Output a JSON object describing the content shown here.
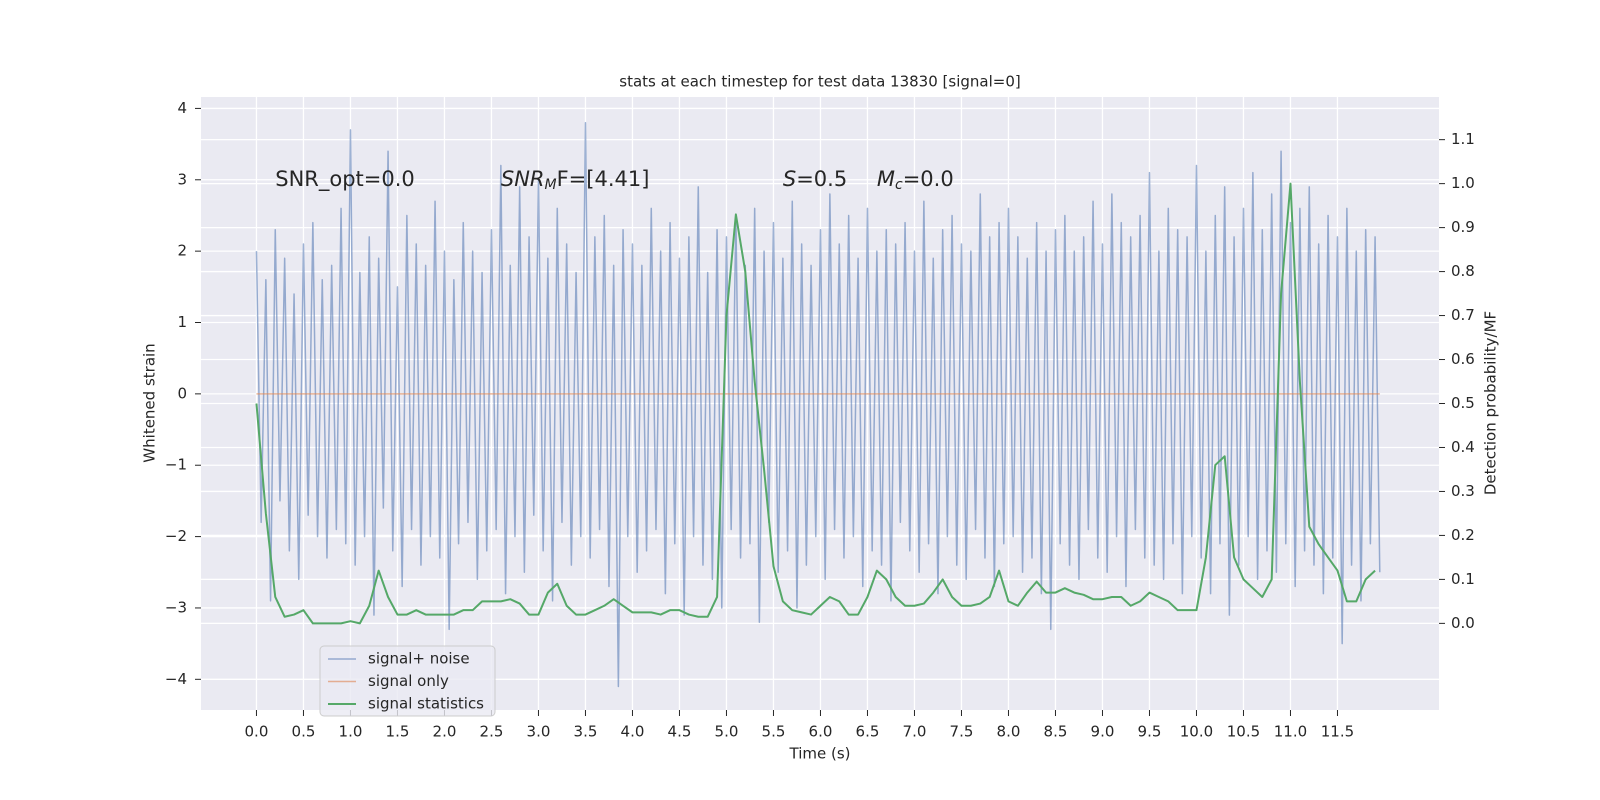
{
  "chart_data": {
    "type": "line",
    "title": "stats at each timestep for test data 13830 [signal=0]",
    "xlabel": "Time (s)",
    "ylabel": "Whitened strain",
    "y2label": "Detection probability/MF",
    "grid": true,
    "legend": "lower left",
    "xlim": [
      -0.59,
      12.58
    ],
    "xticks": [
      {
        "value": 0,
        "label": "0.0"
      },
      0.5,
      {
        "value": 1,
        "label": "1.0"
      },
      1.5,
      {
        "value": 2,
        "label": "2.0"
      },
      2.5,
      {
        "value": 3,
        "label": "3.0"
      },
      3.5,
      {
        "value": 4,
        "label": "4.0"
      },
      4.5,
      {
        "value": 5,
        "label": "5.0"
      },
      5.5,
      {
        "value": 6,
        "label": "6.0"
      },
      6.5,
      {
        "value": 7,
        "label": "7.0"
      },
      7.5,
      {
        "value": 8,
        "label": "8.0"
      },
      8.5,
      {
        "value": 9,
        "label": "9.0"
      },
      9.5,
      {
        "value": 10,
        "label": "10.0"
      },
      10.5,
      {
        "value": 11,
        "label": "11.0"
      },
      11.5
    ],
    "ylim": [
      -4.43,
      4.16
    ],
    "yticks": [
      {
        "value": -4,
        "label": "−4"
      },
      {
        "value": -3,
        "label": "−3"
      },
      {
        "value": -2,
        "label": "−2"
      },
      {
        "value": -1,
        "label": "−1"
      },
      0,
      1,
      2,
      3,
      4
    ],
    "y2lim": [
      -0.197,
      1.197
    ],
    "y2ticks": [
      {
        "value": 0,
        "label": "0.0"
      },
      0.1,
      0.2,
      0.3,
      0.4,
      0.5,
      0.6,
      0.7,
      0.8,
      0.9,
      {
        "value": 1,
        "label": "1.0"
      },
      1.1
    ],
    "annotations": [
      {
        "text": "SNR_opt=0.0"
      },
      {
        "main": "SNR",
        "sub": "M",
        "rest": "F=[4.41]"
      },
      {
        "main": "S",
        "rest": "=0.5"
      },
      {
        "main": "M",
        "sub": "c",
        "rest": "=0.0"
      }
    ],
    "series": [
      {
        "name": "signal+ noise",
        "color": "#4c72b0",
        "x": [
          0,
          0.05,
          0.1,
          0.15,
          0.2,
          0.25,
          0.3,
          0.35,
          0.4,
          0.45,
          0.5,
          0.55,
          0.6,
          0.65,
          0.7,
          0.75,
          0.8,
          0.85,
          0.9,
          0.95,
          1,
          1.05,
          1.1,
          1.15,
          1.2,
          1.25,
          1.3,
          1.35,
          1.4,
          1.45,
          1.5,
          1.55,
          1.6,
          1.65,
          1.7,
          1.75,
          1.8,
          1.85,
          1.9,
          1.95,
          2,
          2.05,
          2.1,
          2.15,
          2.2,
          2.25,
          2.3,
          2.35,
          2.4,
          2.45,
          2.5,
          2.55,
          2.6,
          2.65,
          2.7,
          2.75,
          2.8,
          2.85,
          2.9,
          2.95,
          3,
          3.05,
          3.1,
          3.15,
          3.2,
          3.25,
          3.3,
          3.35,
          3.4,
          3.45,
          3.5,
          3.55,
          3.6,
          3.65,
          3.7,
          3.75,
          3.8,
          3.85,
          3.9,
          3.95,
          4,
          4.05,
          4.1,
          4.15,
          4.2,
          4.25,
          4.3,
          4.35,
          4.4,
          4.45,
          4.5,
          4.55,
          4.6,
          4.65,
          4.7,
          4.75,
          4.8,
          4.85,
          4.9,
          4.95,
          5,
          5.05,
          5.1,
          5.15,
          5.2,
          5.25,
          5.3,
          5.35,
          5.4,
          5.45,
          5.5,
          5.55,
          5.6,
          5.65,
          5.7,
          5.75,
          5.8,
          5.85,
          5.9,
          5.95,
          6,
          6.05,
          6.1,
          6.15,
          6.2,
          6.25,
          6.3,
          6.35,
          6.4,
          6.45,
          6.5,
          6.55,
          6.6,
          6.65,
          6.7,
          6.75,
          6.8,
          6.85,
          6.9,
          6.95,
          7,
          7.05,
          7.1,
          7.15,
          7.2,
          7.25,
          7.3,
          7.35,
          7.4,
          7.45,
          7.5,
          7.55,
          7.6,
          7.65,
          7.7,
          7.75,
          7.8,
          7.85,
          7.9,
          7.95,
          8,
          8.05,
          8.1,
          8.15,
          8.2,
          8.25,
          8.3,
          8.35,
          8.4,
          8.45,
          8.5,
          8.55,
          8.6,
          8.65,
          8.7,
          8.75,
          8.8,
          8.85,
          8.9,
          8.95,
          9,
          9.05,
          9.1,
          9.15,
          9.2,
          9.25,
          9.3,
          9.35,
          9.4,
          9.45,
          9.5,
          9.55,
          9.6,
          9.65,
          9.7,
          9.75,
          9.8,
          9.85,
          9.9,
          9.95,
          10,
          10.05,
          10.1,
          10.15,
          10.2,
          10.25,
          10.3,
          10.35,
          10.4,
          10.45,
          10.5,
          10.55,
          10.6,
          10.65,
          10.7,
          10.75,
          10.8,
          10.85,
          10.9,
          10.95,
          11,
          11.05,
          11.1,
          11.15,
          11.2,
          11.25,
          11.3,
          11.35,
          11.4,
          11.45,
          11.5,
          11.55,
          11.6,
          11.65,
          11.7,
          11.75,
          11.8,
          11.85,
          11.9,
          11.95
        ],
        "values": [
          2.0,
          -1.8,
          1.6,
          -2.9,
          2.3,
          -1.5,
          1.9,
          -2.2,
          1.4,
          -2.6,
          2.1,
          -1.7,
          2.4,
          -2.0,
          1.6,
          -2.3,
          1.8,
          -1.9,
          2.6,
          -2.1,
          3.7,
          -2.4,
          1.7,
          -2.0,
          2.2,
          -3.1,
          1.9,
          -1.6,
          3.4,
          -2.2,
          1.5,
          -2.7,
          2.5,
          -1.9,
          2.1,
          -2.4,
          1.8,
          -2.0,
          2.7,
          -2.3,
          2.0,
          -3.3,
          1.6,
          -2.1,
          2.4,
          -1.8,
          2.0,
          -2.6,
          1.7,
          -2.2,
          2.3,
          -1.9,
          3.2,
          -2.8,
          1.8,
          -2.0,
          2.9,
          -2.5,
          2.2,
          -1.7,
          3.0,
          -2.2,
          1.9,
          -2.9,
          2.6,
          -1.8,
          2.1,
          -2.4,
          1.7,
          -2.0,
          3.8,
          -2.3,
          2.2,
          -1.9,
          2.5,
          -2.7,
          1.8,
          -4.1,
          2.3,
          -2.0,
          2.1,
          -2.5,
          1.8,
          -2.2,
          2.6,
          -1.9,
          2.0,
          -2.8,
          2.4,
          -2.1,
          1.9,
          -3.1,
          2.2,
          -2.0,
          2.9,
          -2.4,
          1.7,
          -2.6,
          2.3,
          -3.0,
          2.2,
          -1.9,
          2.5,
          -2.3,
          1.8,
          -2.1,
          2.6,
          -3.2,
          2.0,
          -1.8,
          2.4,
          -2.5,
          1.9,
          -2.2,
          2.7,
          -3.0,
          2.1,
          -2.4,
          1.8,
          -2.0,
          2.3,
          -2.6,
          2.8,
          -1.9,
          2.1,
          -2.3,
          2.5,
          -2.0,
          1.9,
          -2.7,
          2.6,
          -2.2,
          2.0,
          -2.4,
          2.3,
          -2.9,
          2.1,
          -1.8,
          2.4,
          -2.2,
          2.0,
          -2.5,
          2.7,
          -2.1,
          1.9,
          -2.8,
          2.3,
          -2.0,
          2.5,
          -2.4,
          2.1,
          -2.6,
          2.0,
          -1.9,
          2.8,
          -2.3,
          2.2,
          -2.7,
          2.4,
          -2.1,
          2.6,
          -2.0,
          2.2,
          -2.5,
          1.9,
          -2.3,
          2.4,
          -2.8,
          2.0,
          -3.3,
          2.3,
          -2.1,
          2.5,
          -2.4,
          2.0,
          -2.6,
          2.2,
          -1.9,
          2.7,
          -2.3,
          2.1,
          -2.5,
          2.8,
          -2.0,
          2.4,
          -2.7,
          2.2,
          -1.9,
          2.5,
          -2.3,
          3.1,
          -2.4,
          2.0,
          -2.6,
          2.6,
          -2.1,
          2.3,
          -2.8,
          2.2,
          -2.0,
          3.2,
          -2.3,
          2.0,
          -2.8,
          2.5,
          -2.1,
          2.9,
          -3.1,
          2.2,
          -2.4,
          2.6,
          -2.0,
          3.1,
          -2.6,
          2.3,
          -2.2,
          2.8,
          -2.5,
          3.4,
          -2.1,
          2.4,
          -2.7,
          2.6,
          -2.2,
          2.9,
          -2.4,
          2.1,
          -2.8,
          2.5,
          -2.3,
          2.2,
          -3.5,
          2.6,
          -2.4,
          2.0,
          -2.9,
          2.3,
          -2.1,
          2.2,
          -2.5
        ]
      },
      {
        "name": "signal only",
        "color": "#dd8452",
        "x": [
          0,
          11.95
        ],
        "values": [
          0,
          0
        ]
      },
      {
        "name": "signal statistics",
        "color": "#55a868",
        "axis": "y2",
        "x": [
          0,
          0.1,
          0.2,
          0.3,
          0.4,
          0.5,
          0.6,
          0.7,
          0.8,
          0.9,
          1,
          1.1,
          1.2,
          1.3,
          1.4,
          1.5,
          1.6,
          1.7,
          1.8,
          1.9,
          2,
          2.1,
          2.2,
          2.3,
          2.4,
          2.5,
          2.6,
          2.7,
          2.8,
          2.9,
          3,
          3.1,
          3.2,
          3.3,
          3.4,
          3.5,
          3.6,
          3.7,
          3.8,
          3.9,
          4,
          4.1,
          4.2,
          4.3,
          4.4,
          4.5,
          4.6,
          4.7,
          4.8,
          4.9,
          5,
          5.1,
          5.2,
          5.3,
          5.4,
          5.5,
          5.6,
          5.7,
          5.8,
          5.9,
          6,
          6.1,
          6.2,
          6.3,
          6.4,
          6.5,
          6.6,
          6.7,
          6.8,
          6.9,
          7,
          7.1,
          7.2,
          7.3,
          7.4,
          7.5,
          7.6,
          7.7,
          7.8,
          7.9,
          8,
          8.1,
          8.2,
          8.3,
          8.4,
          8.5,
          8.6,
          8.7,
          8.8,
          8.9,
          9,
          9.1,
          9.2,
          9.3,
          9.4,
          9.5,
          9.6,
          9.7,
          9.8,
          9.9,
          10,
          10.1,
          10.2,
          10.3,
          10.4,
          10.5,
          10.6,
          10.7,
          10.8,
          10.9,
          11,
          11.1,
          11.2,
          11.3,
          11.4,
          11.5,
          11.6,
          11.7,
          11.8,
          11.9
        ],
        "values": [
          0.5,
          0.25,
          0.06,
          0.015,
          0.02,
          0.03,
          0.0,
          0.0,
          0.0,
          0.0,
          0.005,
          0.0,
          0.04,
          0.12,
          0.06,
          0.02,
          0.02,
          0.03,
          0.02,
          0.02,
          0.02,
          0.02,
          0.03,
          0.03,
          0.05,
          0.05,
          0.05,
          0.055,
          0.045,
          0.02,
          0.02,
          0.07,
          0.09,
          0.04,
          0.02,
          0.02,
          0.03,
          0.04,
          0.055,
          0.04,
          0.025,
          0.025,
          0.025,
          0.02,
          0.03,
          0.03,
          0.02,
          0.015,
          0.015,
          0.06,
          0.7,
          0.93,
          0.8,
          0.55,
          0.35,
          0.13,
          0.05,
          0.03,
          0.025,
          0.02,
          0.04,
          0.06,
          0.05,
          0.02,
          0.02,
          0.06,
          0.12,
          0.1,
          0.06,
          0.04,
          0.04,
          0.045,
          0.07,
          0.1,
          0.06,
          0.04,
          0.04,
          0.045,
          0.06,
          0.12,
          0.05,
          0.04,
          0.07,
          0.095,
          0.07,
          0.07,
          0.08,
          0.07,
          0.065,
          0.055,
          0.055,
          0.06,
          0.06,
          0.04,
          0.05,
          0.07,
          0.06,
          0.05,
          0.03,
          0.03,
          0.03,
          0.15,
          0.36,
          0.38,
          0.15,
          0.1,
          0.08,
          0.06,
          0.1,
          0.75,
          1.0,
          0.55,
          0.22,
          0.18,
          0.15,
          0.12,
          0.05,
          0.05,
          0.1,
          0.12
        ]
      }
    ]
  }
}
